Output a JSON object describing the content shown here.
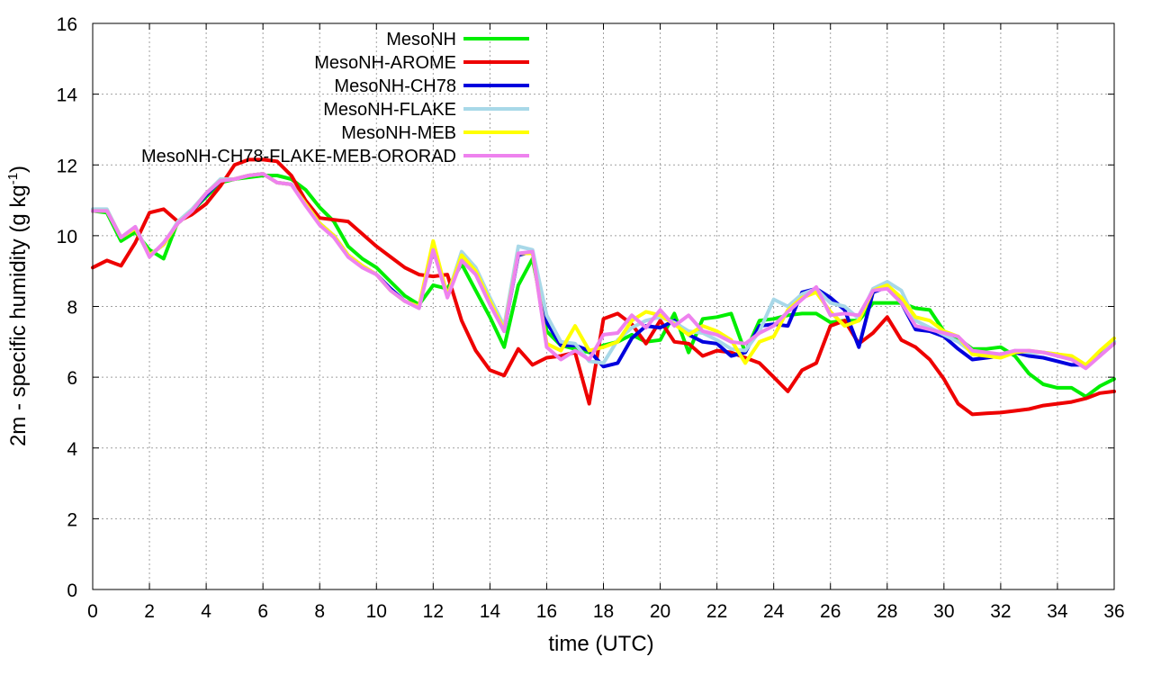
{
  "chart_data": {
    "type": "line",
    "title": "",
    "xlabel": "time (UTC)",
    "ylabel": {
      "main": "2m - specific humidity (g kg",
      "sup": "-1",
      "close": ")"
    },
    "xlim": [
      0,
      36
    ],
    "ylim": [
      0,
      16
    ],
    "xticks": [
      "0",
      "2",
      "4",
      "6",
      "8",
      "10",
      "12",
      "14",
      "16",
      "18",
      "20",
      "22",
      "24",
      "26",
      "28",
      "30",
      "32",
      "34",
      "36"
    ],
    "yticks": [
      "0",
      "2",
      "4",
      "6",
      "8",
      "10",
      "12",
      "14",
      "16"
    ],
    "grid": true,
    "legend_position": "top-left",
    "series": [
      {
        "name": "MesoNH",
        "color": "#00ee00",
        "x": [
          0,
          0.5,
          1,
          1.5,
          2,
          2.5,
          3,
          3.5,
          4,
          4.5,
          5,
          5.5,
          6,
          6.5,
          7,
          7.5,
          8,
          8.5,
          9,
          9.5,
          10,
          10.5,
          11,
          11.5,
          12,
          12.5,
          13,
          13.5,
          14,
          14.5,
          15,
          15.5,
          16,
          16.5,
          17,
          17.5,
          18,
          18.5,
          19,
          19.5,
          20,
          20.5,
          21,
          21.5,
          22,
          22.5,
          23,
          23.5,
          24,
          24.5,
          25,
          25.5,
          26,
          26.5,
          27,
          27.5,
          28,
          28.5,
          29,
          29.5,
          30,
          30.5,
          31,
          31.5,
          32,
          32.5,
          33,
          33.5,
          34,
          34.5,
          35,
          35.5,
          36
        ],
        "values": [
          10.7,
          10.65,
          9.85,
          10.1,
          9.6,
          9.35,
          10.4,
          10.7,
          11.1,
          11.5,
          11.6,
          11.65,
          11.7,
          11.7,
          11.6,
          11.3,
          10.8,
          10.4,
          9.7,
          9.35,
          9.1,
          8.7,
          8.3,
          8.05,
          8.6,
          8.5,
          9.2,
          8.45,
          7.7,
          6.85,
          8.6,
          9.35,
          7.3,
          6.9,
          6.8,
          6.7,
          6.9,
          7.0,
          7.2,
          7.0,
          7.05,
          7.8,
          6.7,
          7.65,
          7.7,
          7.8,
          6.7,
          7.6,
          7.65,
          7.75,
          7.8,
          7.8,
          7.55,
          7.6,
          7.6,
          8.1,
          8.1,
          8.1,
          7.95,
          7.9,
          7.3,
          7.1,
          6.8,
          6.8,
          6.85,
          6.6,
          6.1,
          5.8,
          5.7,
          5.7,
          5.45,
          5.75,
          5.95
        ]
      },
      {
        "name": "MesoNH-AROME",
        "color": "#ee0000",
        "x": [
          0,
          0.5,
          1,
          1.5,
          2,
          2.5,
          3,
          3.5,
          4,
          4.5,
          5,
          5.5,
          6,
          6.5,
          7,
          7.5,
          8,
          8.5,
          9,
          9.5,
          10,
          10.5,
          11,
          11.5,
          12,
          12.5,
          13,
          13.5,
          14,
          14.5,
          15,
          15.5,
          16,
          16.5,
          17,
          17.5,
          18,
          18.5,
          19,
          19.5,
          20,
          20.5,
          21,
          21.5,
          22,
          22.5,
          23,
          23.5,
          24,
          24.5,
          25,
          25.5,
          26,
          26.5,
          27,
          27.5,
          28,
          28.5,
          29,
          29.5,
          30,
          30.5,
          31,
          31.5,
          32,
          32.5,
          33,
          33.5,
          34,
          34.5,
          35,
          35.5,
          36
        ],
        "values": [
          9.1,
          9.3,
          9.15,
          9.8,
          10.65,
          10.75,
          10.4,
          10.6,
          10.9,
          11.4,
          12.0,
          12.15,
          12.15,
          12.1,
          11.7,
          11.0,
          10.5,
          10.45,
          10.4,
          10.05,
          9.7,
          9.4,
          9.1,
          8.9,
          8.85,
          8.9,
          7.6,
          6.75,
          6.2,
          6.05,
          6.8,
          6.35,
          6.55,
          6.6,
          6.7,
          5.25,
          7.65,
          7.8,
          7.5,
          6.95,
          7.6,
          7.0,
          6.95,
          6.6,
          6.75,
          6.7,
          6.55,
          6.4,
          6.0,
          5.6,
          6.2,
          6.4,
          7.45,
          7.6,
          6.95,
          7.25,
          7.7,
          7.05,
          6.85,
          6.5,
          5.95,
          5.25,
          4.95,
          4.98,
          5.0,
          5.05,
          5.1,
          5.2,
          5.25,
          5.3,
          5.4,
          5.55,
          5.6
        ]
      },
      {
        "name": "MesoNH-CH78",
        "color": "#0000dd",
        "x": [
          0,
          0.5,
          1,
          1.5,
          2,
          2.5,
          3,
          3.5,
          4,
          4.5,
          5,
          5.5,
          6,
          6.5,
          7,
          7.5,
          8,
          8.5,
          9,
          9.5,
          10,
          10.5,
          11,
          11.5,
          12,
          12.5,
          13,
          13.5,
          14,
          14.5,
          15,
          15.5,
          16,
          16.5,
          17,
          17.5,
          18,
          18.5,
          19,
          19.5,
          20,
          20.5,
          21,
          21.5,
          22,
          22.5,
          23,
          23.5,
          24,
          24.5,
          25,
          25.5,
          26,
          26.5,
          27,
          27.5,
          28,
          28.5,
          29,
          29.5,
          30,
          30.5,
          31,
          31.5,
          32,
          32.5,
          33,
          33.5,
          34,
          34.5,
          35,
          35.5,
          36
        ],
        "values": [
          10.7,
          10.7,
          9.95,
          10.2,
          9.45,
          9.75,
          10.35,
          10.7,
          11.15,
          11.55,
          11.6,
          11.7,
          11.75,
          11.5,
          11.45,
          10.9,
          10.35,
          10.0,
          9.45,
          9.15,
          8.9,
          8.5,
          8.15,
          8.0,
          9.6,
          8.35,
          9.4,
          9.0,
          8.1,
          7.3,
          9.45,
          9.55,
          7.55,
          6.9,
          6.9,
          6.75,
          6.3,
          6.4,
          7.1,
          7.45,
          7.4,
          7.6,
          7.2,
          7.0,
          6.95,
          6.6,
          6.7,
          7.45,
          7.5,
          7.45,
          8.4,
          8.5,
          8.25,
          7.9,
          6.85,
          8.4,
          8.55,
          8.1,
          7.35,
          7.3,
          7.15,
          6.8,
          6.5,
          6.55,
          6.6,
          6.7,
          6.6,
          6.55,
          6.45,
          6.35,
          6.35,
          6.7,
          7.0
        ]
      },
      {
        "name": "MesoNH-FLAKE",
        "color": "#a8d8e8",
        "x": [
          0,
          0.5,
          1,
          1.5,
          2,
          2.5,
          3,
          3.5,
          4,
          4.5,
          5,
          5.5,
          6,
          6.5,
          7,
          7.5,
          8,
          8.5,
          9,
          9.5,
          10,
          10.5,
          11,
          11.5,
          12,
          12.5,
          13,
          13.5,
          14,
          14.5,
          15,
          15.5,
          16,
          16.5,
          17,
          17.5,
          18,
          18.5,
          19,
          19.5,
          20,
          20.5,
          21,
          21.5,
          22,
          22.5,
          23,
          23.5,
          24,
          24.5,
          25,
          25.5,
          26,
          26.5,
          27,
          27.5,
          28,
          28.5,
          29,
          29.5,
          30,
          30.5,
          31,
          31.5,
          32,
          32.5,
          33,
          33.5,
          34,
          34.5,
          35,
          35.5,
          36
        ],
        "values": [
          10.75,
          10.75,
          9.95,
          10.25,
          9.45,
          9.75,
          10.4,
          10.75,
          11.2,
          11.6,
          11.6,
          11.7,
          11.75,
          11.5,
          11.45,
          10.9,
          10.35,
          10.0,
          9.45,
          9.15,
          8.9,
          8.45,
          8.15,
          7.95,
          9.7,
          8.3,
          9.55,
          9.1,
          8.25,
          7.45,
          9.7,
          9.6,
          7.75,
          7.0,
          6.95,
          6.45,
          6.4,
          7.05,
          7.4,
          7.6,
          7.7,
          7.55,
          7.3,
          7.25,
          7.05,
          6.8,
          6.75,
          7.3,
          8.2,
          8.0,
          8.35,
          8.5,
          8.1,
          8.0,
          7.65,
          8.5,
          8.7,
          8.45,
          7.6,
          7.4,
          7.2,
          7.0,
          6.7,
          6.65,
          6.6,
          6.75,
          6.7,
          6.7,
          6.65,
          6.55,
          6.3,
          6.6,
          7.0
        ]
      },
      {
        "name": "MesoNH-MEB",
        "color": "#ffff00",
        "x": [
          0,
          0.5,
          1,
          1.5,
          2,
          2.5,
          3,
          3.5,
          4,
          4.5,
          5,
          5.5,
          6,
          6.5,
          7,
          7.5,
          8,
          8.5,
          9,
          9.5,
          10,
          10.5,
          11,
          11.5,
          12,
          12.5,
          13,
          13.5,
          14,
          14.5,
          15,
          15.5,
          16,
          16.5,
          17,
          17.5,
          18,
          18.5,
          19,
          19.5,
          20,
          20.5,
          21,
          21.5,
          22,
          22.5,
          23,
          23.5,
          24,
          24.5,
          25,
          25.5,
          26,
          26.5,
          27,
          27.5,
          28,
          28.5,
          29,
          29.5,
          30,
          30.5,
          31,
          31.5,
          32,
          32.5,
          33,
          33.5,
          34,
          34.5,
          35,
          35.5,
          36
        ],
        "values": [
          10.7,
          10.7,
          9.95,
          10.2,
          9.45,
          9.75,
          10.35,
          10.7,
          11.2,
          11.55,
          11.6,
          11.7,
          11.75,
          11.5,
          11.45,
          10.9,
          10.35,
          10.0,
          9.45,
          9.15,
          8.9,
          8.45,
          8.15,
          8.0,
          9.85,
          8.3,
          9.45,
          9.0,
          8.15,
          7.35,
          9.5,
          9.5,
          6.95,
          6.75,
          7.45,
          6.75,
          6.85,
          7.0,
          7.6,
          7.85,
          7.75,
          7.5,
          7.2,
          7.45,
          7.3,
          7.05,
          6.4,
          7.0,
          7.15,
          7.9,
          8.25,
          8.4,
          7.85,
          7.45,
          7.6,
          8.45,
          8.6,
          8.25,
          7.7,
          7.6,
          7.3,
          7.15,
          6.65,
          6.6,
          6.55,
          6.7,
          6.75,
          6.7,
          6.65,
          6.6,
          6.35,
          6.75,
          7.1
        ]
      },
      {
        "name": "MesoNH-CH78-FLAKE-MEB-ORORAD",
        "color": "#ee82ee",
        "x": [
          0,
          0.5,
          1,
          1.5,
          2,
          2.5,
          3,
          3.5,
          4,
          4.5,
          5,
          5.5,
          6,
          6.5,
          7,
          7.5,
          8,
          8.5,
          9,
          9.5,
          10,
          10.5,
          11,
          11.5,
          12,
          12.5,
          13,
          13.5,
          14,
          14.5,
          15,
          15.5,
          16,
          16.5,
          17,
          17.5,
          18,
          18.5,
          19,
          19.5,
          20,
          20.5,
          21,
          21.5,
          22,
          22.5,
          23,
          23.5,
          24,
          24.5,
          25,
          25.5,
          26,
          26.5,
          27,
          27.5,
          28,
          28.5,
          29,
          29.5,
          30,
          30.5,
          31,
          31.5,
          32,
          32.5,
          33,
          33.5,
          34,
          34.5,
          35,
          35.5,
          36
        ],
        "values": [
          10.7,
          10.7,
          9.95,
          10.25,
          9.4,
          9.8,
          10.35,
          10.7,
          11.2,
          11.55,
          11.6,
          11.7,
          11.75,
          11.5,
          11.45,
          10.85,
          10.3,
          9.95,
          9.4,
          9.1,
          8.9,
          8.45,
          8.15,
          7.95,
          9.6,
          8.25,
          9.3,
          8.9,
          8.05,
          7.3,
          9.5,
          9.55,
          6.85,
          6.5,
          6.75,
          6.5,
          7.2,
          7.25,
          7.75,
          7.4,
          7.9,
          7.45,
          7.75,
          7.3,
          7.2,
          7.0,
          6.95,
          7.25,
          7.45,
          7.85,
          8.2,
          8.55,
          7.75,
          7.8,
          7.75,
          8.45,
          8.5,
          8.1,
          7.45,
          7.35,
          7.25,
          7.15,
          6.75,
          6.7,
          6.65,
          6.75,
          6.75,
          6.7,
          6.6,
          6.5,
          6.25,
          6.6,
          6.95
        ]
      }
    ]
  }
}
